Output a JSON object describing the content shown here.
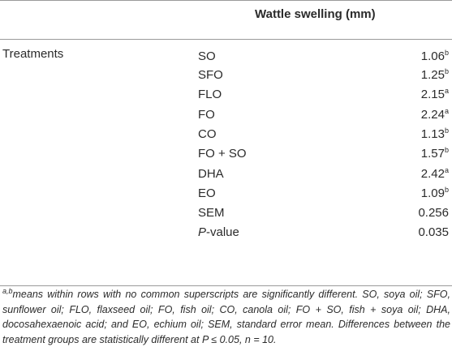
{
  "table": {
    "column_header": "Wattle swelling (mm)",
    "row_group_label": "Treatments",
    "rows": [
      {
        "name": "SO",
        "value": "1.06",
        "sup": "b"
      },
      {
        "name": "SFO",
        "value": "1.25",
        "sup": "b"
      },
      {
        "name": "FLO",
        "value": "2.15",
        "sup": "a"
      },
      {
        "name": "FO",
        "value": "2.24",
        "sup": "a"
      },
      {
        "name": "CO",
        "value": "1.13",
        "sup": "b"
      },
      {
        "name": "FO + SO",
        "value": "1.57",
        "sup": "b"
      },
      {
        "name": "DHA",
        "value": "2.42",
        "sup": "a"
      },
      {
        "name": "EO",
        "value": "1.09",
        "sup": "b"
      },
      {
        "name": "SEM",
        "value": "0.256",
        "sup": ""
      },
      {
        "name_italic": "P",
        "name_rest": "-value",
        "value": "0.035",
        "sup": ""
      }
    ]
  },
  "footnote": {
    "superscript": "a,b",
    "text": "means within rows with no common superscripts are significantly different. SO, soya oil; SFO, sunflower oil; FLO, flaxseed oil; FO, fish oil; CO, canola oil; FO + SO, fish + soya oil; DHA, docosahexaenoic acid; and EO, echium oil; SEM, standard error mean. Differences between the treatment groups are statistically different at P ≤ 0.05, n = 10."
  }
}
